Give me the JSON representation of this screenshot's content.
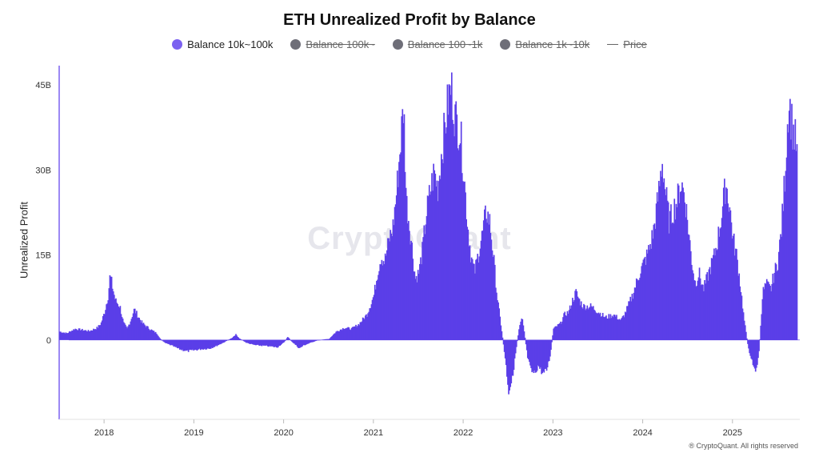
{
  "chart_data": {
    "type": "bar",
    "title": "ETH Unrealized Profit by Balance",
    "ylabel": "Unrealized Profit",
    "xlabel": "",
    "ylim": [
      -14000000000,
      47000000000
    ],
    "xlim": [
      2017.5,
      2025.75
    ],
    "yticks": [
      {
        "value": 0,
        "label": "0"
      },
      {
        "value": 15000000000,
        "label": "15B"
      },
      {
        "value": 30000000000,
        "label": "30B"
      },
      {
        "value": 45000000000,
        "label": "45B"
      }
    ],
    "xticks": [
      {
        "value": 2018,
        "label": "2018"
      },
      {
        "value": 2019,
        "label": "2019"
      },
      {
        "value": 2020,
        "label": "2020"
      },
      {
        "value": 2021,
        "label": "2021"
      },
      {
        "value": 2022,
        "label": "2022"
      },
      {
        "value": 2023,
        "label": "2023"
      },
      {
        "value": 2024,
        "label": "2024"
      },
      {
        "value": 2025,
        "label": "2025"
      }
    ],
    "legend_placement": "top-center",
    "grid": false,
    "series": [
      {
        "name": "Balance 10k~100k",
        "active": true,
        "color": "#5b3ee8",
        "points": [
          [
            2017.5,
            1.5
          ],
          [
            2017.58,
            1.2
          ],
          [
            2017.67,
            2.0
          ],
          [
            2017.75,
            1.8
          ],
          [
            2017.83,
            1.6
          ],
          [
            2017.92,
            2.2
          ],
          [
            2017.96,
            3.0
          ],
          [
            2018.0,
            5.0
          ],
          [
            2018.04,
            8.0
          ],
          [
            2018.06,
            11.5
          ],
          [
            2018.08,
            10.0
          ],
          [
            2018.12,
            7.0
          ],
          [
            2018.17,
            6.0
          ],
          [
            2018.21,
            3.0
          ],
          [
            2018.25,
            2.0
          ],
          [
            2018.29,
            3.5
          ],
          [
            2018.33,
            5.5
          ],
          [
            2018.38,
            4.0
          ],
          [
            2018.42,
            3.0
          ],
          [
            2018.5,
            2.0
          ],
          [
            2018.58,
            1.2
          ],
          [
            2018.62,
            0.2
          ],
          [
            2018.67,
            -0.5
          ],
          [
            2018.75,
            -1.0
          ],
          [
            2018.83,
            -1.6
          ],
          [
            2018.92,
            -2.0
          ],
          [
            2019.0,
            -1.8
          ],
          [
            2019.08,
            -1.6
          ],
          [
            2019.17,
            -1.5
          ],
          [
            2019.25,
            -1.0
          ],
          [
            2019.33,
            -0.4
          ],
          [
            2019.42,
            0.4
          ],
          [
            2019.46,
            1.0
          ],
          [
            2019.5,
            0.3
          ],
          [
            2019.58,
            -0.5
          ],
          [
            2019.67,
            -0.9
          ],
          [
            2019.75,
            -1.0
          ],
          [
            2019.83,
            -1.1
          ],
          [
            2019.92,
            -1.3
          ],
          [
            2020.0,
            -0.4
          ],
          [
            2020.04,
            0.6
          ],
          [
            2020.08,
            -0.2
          ],
          [
            2020.17,
            -1.5
          ],
          [
            2020.21,
            -1.0
          ],
          [
            2020.29,
            -0.5
          ],
          [
            2020.38,
            0.0
          ],
          [
            2020.5,
            0.2
          ],
          [
            2020.58,
            1.5
          ],
          [
            2020.67,
            2.2
          ],
          [
            2020.75,
            2.0
          ],
          [
            2020.83,
            2.8
          ],
          [
            2020.92,
            4.5
          ],
          [
            2021.0,
            8.0
          ],
          [
            2021.04,
            12.0
          ],
          [
            2021.08,
            15.0
          ],
          [
            2021.12,
            14.0
          ],
          [
            2021.17,
            18.0
          ],
          [
            2021.21,
            20.0
          ],
          [
            2021.25,
            26.0
          ],
          [
            2021.29,
            34.0
          ],
          [
            2021.33,
            42.0
          ],
          [
            2021.36,
            25.0
          ],
          [
            2021.42,
            17.0
          ],
          [
            2021.46,
            11.0
          ],
          [
            2021.5,
            12.0
          ],
          [
            2021.54,
            16.0
          ],
          [
            2021.58,
            22.0
          ],
          [
            2021.62,
            26.0
          ],
          [
            2021.67,
            30.0
          ],
          [
            2021.71,
            27.0
          ],
          [
            2021.75,
            33.0
          ],
          [
            2021.79,
            38.0
          ],
          [
            2021.83,
            43.0
          ],
          [
            2021.86,
            45.0
          ],
          [
            2021.9,
            40.0
          ],
          [
            2021.96,
            37.0
          ],
          [
            2022.0,
            30.0
          ],
          [
            2022.04,
            21.0
          ],
          [
            2022.08,
            15.0
          ],
          [
            2022.12,
            12.0
          ],
          [
            2022.17,
            16.0
          ],
          [
            2022.21,
            19.0
          ],
          [
            2022.25,
            23.0
          ],
          [
            2022.29,
            21.0
          ],
          [
            2022.33,
            15.0
          ],
          [
            2022.37,
            8.0
          ],
          [
            2022.42,
            2.0
          ],
          [
            2022.46,
            -3.0
          ],
          [
            2022.5,
            -9.0
          ],
          [
            2022.54,
            -7.0
          ],
          [
            2022.58,
            -2.0
          ],
          [
            2022.62,
            2.5
          ],
          [
            2022.65,
            4.5
          ],
          [
            2022.67,
            2.0
          ],
          [
            2022.71,
            -3.0
          ],
          [
            2022.75,
            -5.5
          ],
          [
            2022.79,
            -6.0
          ],
          [
            2022.83,
            -4.5
          ],
          [
            2022.88,
            -6.0
          ],
          [
            2022.92,
            -5.5
          ],
          [
            2022.96,
            -3.0
          ],
          [
            2023.0,
            2.0
          ],
          [
            2023.04,
            2.5
          ],
          [
            2023.08,
            3.0
          ],
          [
            2023.12,
            4.5
          ],
          [
            2023.17,
            5.0
          ],
          [
            2023.21,
            7.0
          ],
          [
            2023.25,
            8.5
          ],
          [
            2023.29,
            7.0
          ],
          [
            2023.33,
            6.0
          ],
          [
            2023.42,
            6.0
          ],
          [
            2023.5,
            5.0
          ],
          [
            2023.58,
            4.0
          ],
          [
            2023.67,
            4.5
          ],
          [
            2023.75,
            3.5
          ],
          [
            2023.79,
            4.5
          ],
          [
            2023.83,
            6.0
          ],
          [
            2023.88,
            8.0
          ],
          [
            2023.92,
            10.0
          ],
          [
            2023.96,
            12.0
          ],
          [
            2024.0,
            13.5
          ],
          [
            2024.04,
            15.0
          ],
          [
            2024.08,
            17.0
          ],
          [
            2024.12,
            20.0
          ],
          [
            2024.17,
            26.0
          ],
          [
            2024.21,
            32.0
          ],
          [
            2024.25,
            26.0
          ],
          [
            2024.29,
            21.0
          ],
          [
            2024.33,
            23.0
          ],
          [
            2024.38,
            25.0
          ],
          [
            2024.42,
            28.0
          ],
          [
            2024.46,
            26.0
          ],
          [
            2024.5,
            20.0
          ],
          [
            2024.54,
            14.0
          ],
          [
            2024.58,
            10.0
          ],
          [
            2024.62,
            12.0
          ],
          [
            2024.67,
            9.0
          ],
          [
            2024.71,
            11.0
          ],
          [
            2024.75,
            13.0
          ],
          [
            2024.79,
            15.0
          ],
          [
            2024.83,
            18.0
          ],
          [
            2024.87,
            22.0
          ],
          [
            2024.92,
            28.0
          ],
          [
            2024.96,
            24.0
          ],
          [
            2025.0,
            18.0
          ],
          [
            2025.04,
            15.0
          ],
          [
            2025.08,
            10.0
          ],
          [
            2025.12,
            4.0
          ],
          [
            2025.17,
            -1.5
          ],
          [
            2025.21,
            -3.5
          ],
          [
            2025.25,
            -6.0
          ],
          [
            2025.29,
            -2.0
          ],
          [
            2025.33,
            8.5
          ],
          [
            2025.37,
            10.0
          ],
          [
            2025.42,
            9.0
          ],
          [
            2025.46,
            12.0
          ],
          [
            2025.5,
            14.0
          ],
          [
            2025.54,
            20.0
          ],
          [
            2025.58,
            30.0
          ],
          [
            2025.62,
            43.0
          ],
          [
            2025.66,
            38.0
          ],
          [
            2025.7,
            35.0
          ],
          [
            2025.72,
            32.0
          ]
        ],
        "unit_note": "values in billions"
      },
      {
        "name": "Balance 100k~",
        "active": false,
        "color": "#6e6e78"
      },
      {
        "name": "Balance 100~1k",
        "active": false,
        "color": "#6e6e78"
      },
      {
        "name": "Balance 1k~10k",
        "active": false,
        "color": "#6e6e78"
      },
      {
        "name": "Price",
        "active": false,
        "color": "#666666",
        "marker": "line"
      }
    ]
  },
  "watermark": "CryptoQuant",
  "credit": "® CryptoQuant. All rights reserved"
}
